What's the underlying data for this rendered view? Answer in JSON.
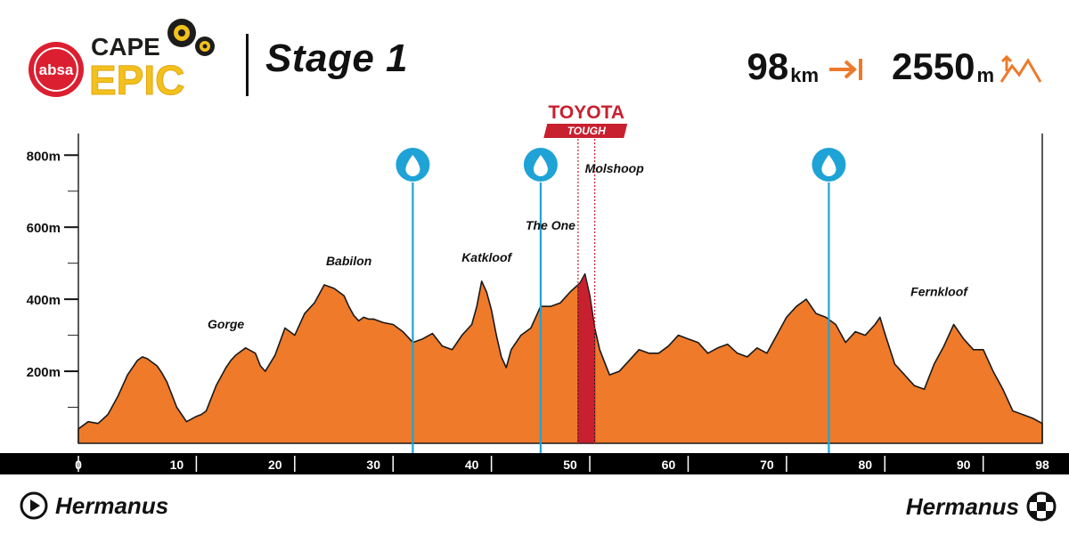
{
  "brand": {
    "sponsor": "absa",
    "name_top": "CAPE",
    "name_bottom": "EPIC",
    "colors": {
      "sponsor_red": "#dc1f30",
      "epic_gold": "#f3c11d",
      "gear_dark": "#1d1d1b"
    }
  },
  "stage": {
    "title": "Stage 1"
  },
  "stats": {
    "distance_value": "98",
    "distance_unit": "km",
    "distance_icon": "arrow-right-to-line-icon",
    "climb_value": "2550",
    "climb_unit": "m",
    "climb_icon": "mountain-climb-icon",
    "icon_color": "#ec7a2a"
  },
  "sponsor_segment": {
    "brand": "TOYOTA",
    "sub": "TOUGH",
    "color": "#c8202f"
  },
  "start_label": "Hermanus",
  "finish_label": "Hermanus",
  "chart_data": {
    "type": "area",
    "title": "",
    "xlabel": "",
    "ylabel": "",
    "x_unit": "km",
    "xlim": [
      0,
      98
    ],
    "ylim": [
      0,
      860
    ],
    "y_ticks": [
      200,
      400,
      600,
      800
    ],
    "y_tick_labels": [
      "200m",
      "400m",
      "600m",
      "800m"
    ],
    "x_ticks": [
      0,
      10,
      20,
      30,
      40,
      50,
      60,
      70,
      80,
      90,
      98
    ],
    "x_tick_labels": [
      "0",
      "10",
      "20",
      "30",
      "40",
      "50",
      "60",
      "70",
      "80",
      "90",
      "98"
    ],
    "colors": {
      "fill": "#ee7a2a",
      "outline": "#1a1a1a",
      "axis_bar": "#000000",
      "water": "#1fa3d6"
    },
    "series": [
      {
        "x": [
          0,
          1,
          2,
          3,
          4,
          5,
          6,
          6.5,
          7,
          7.5,
          8,
          8.5,
          9,
          10,
          11,
          12,
          12.5,
          13,
          14,
          15,
          15.5,
          16,
          17,
          18,
          18.5,
          19,
          20,
          21,
          22,
          23,
          24,
          25,
          26,
          27,
          27.5,
          28,
          28.5,
          29,
          29.5,
          30,
          31,
          32,
          33,
          34,
          35,
          36,
          37,
          38,
          39,
          40,
          40.5,
          41,
          41.5,
          42,
          42.5,
          43,
          43.5,
          44,
          45,
          46,
          47,
          48,
          49,
          50,
          51,
          51.5,
          52,
          52.5,
          53,
          54,
          55,
          56,
          57,
          58,
          59,
          60,
          61,
          62,
          63,
          64,
          65,
          66,
          67,
          68,
          69,
          70,
          71,
          72,
          73,
          74,
          75,
          76,
          77,
          78,
          79,
          80,
          81,
          81.5,
          82,
          83,
          84,
          85,
          86,
          87,
          88,
          89,
          90,
          91,
          92,
          93,
          94,
          95,
          96,
          97,
          98
        ],
        "y": [
          40,
          60,
          55,
          80,
          130,
          190,
          230,
          240,
          235,
          225,
          215,
          195,
          170,
          100,
          60,
          75,
          80,
          90,
          160,
          210,
          230,
          245,
          265,
          250,
          215,
          200,
          245,
          320,
          300,
          360,
          390,
          440,
          430,
          410,
          380,
          355,
          340,
          350,
          345,
          345,
          335,
          330,
          310,
          280,
          290,
          305,
          270,
          260,
          300,
          330,
          380,
          450,
          420,
          370,
          300,
          240,
          210,
          260,
          300,
          320,
          380,
          380,
          390,
          420,
          445,
          470,
          410,
          320,
          260,
          190,
          200,
          230,
          260,
          250,
          250,
          270,
          300,
          290,
          280,
          250,
          265,
          275,
          250,
          240,
          265,
          250,
          300,
          350,
          380,
          400,
          360,
          350,
          330,
          280,
          310,
          300,
          330,
          350,
          305,
          220,
          190,
          160,
          150,
          220,
          270,
          330,
          290,
          260,
          260,
          200,
          150,
          90,
          80,
          70,
          55
        ],
        "fill": "#ee7a2a"
      }
    ],
    "climbs": [
      {
        "label": "Gorge",
        "x": 15,
        "y": 265
      },
      {
        "label": "Babilon",
        "x": 27.5,
        "y": 440
      },
      {
        "label": "Katkloof",
        "x": 41.5,
        "y": 450
      },
      {
        "label": "The One",
        "x": 48,
        "y": 420
      },
      {
        "label": "Molshoop",
        "x": 54.5,
        "y": 470
      },
      {
        "label": "Fernkloof",
        "x": 87.5,
        "y": 330
      }
    ],
    "water_points_km": [
      34,
      47,
      76.3
    ],
    "sponsor_segment_km": [
      50.8,
      52.5
    ]
  }
}
